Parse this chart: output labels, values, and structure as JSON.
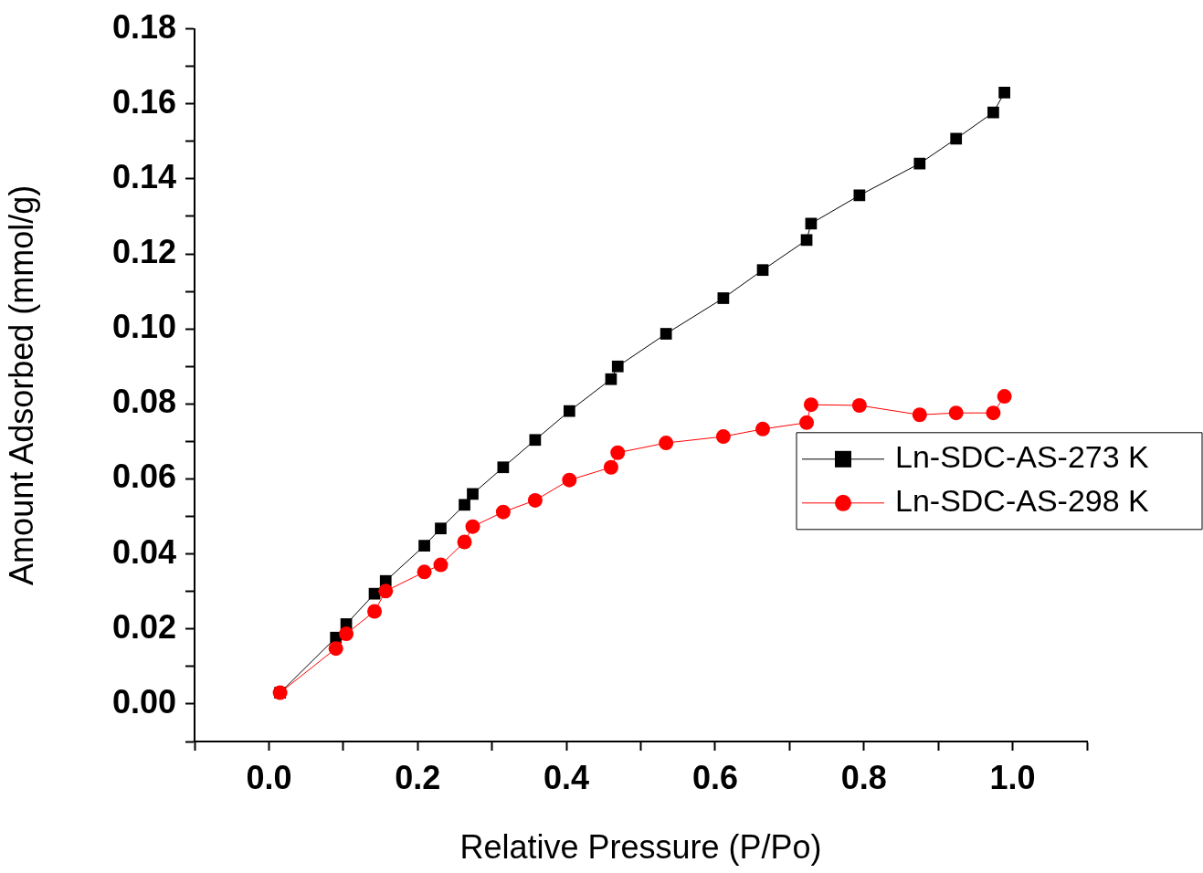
{
  "chart_data": {
    "type": "line",
    "xlabel": "Relative Pressure (P/Po)",
    "ylabel": "Amount Adsorbed (mmol/g)",
    "xlim": [
      -0.1,
      1.1
    ],
    "ylim": [
      -0.01,
      0.18
    ],
    "xticks": [
      {
        "value": -0.1,
        "label": null
      },
      {
        "value": 0,
        "label": "0.0"
      },
      {
        "value": 0.1,
        "label": null
      },
      0.2,
      {
        "value": 0.3,
        "label": null
      },
      0.4,
      {
        "value": 0.5,
        "label": null
      },
      0.6,
      {
        "value": 0.7,
        "label": null
      },
      0.8,
      {
        "value": 0.9,
        "label": null
      },
      {
        "value": 1,
        "label": "1.0"
      },
      {
        "value": 1.1,
        "label": null
      }
    ],
    "yticks": [
      {
        "value": -0.01,
        "label": null
      },
      {
        "value": 0,
        "label": "0.00"
      },
      {
        "value": 0.01,
        "label": null
      },
      {
        "value": 0.02,
        "label": "0.02"
      },
      {
        "value": 0.03,
        "label": null
      },
      {
        "value": 0.04,
        "label": "0.04"
      },
      {
        "value": 0.05,
        "label": null
      },
      {
        "value": 0.06,
        "label": "0.06"
      },
      {
        "value": 0.07,
        "label": null
      },
      {
        "value": 0.08,
        "label": "0.08"
      },
      {
        "value": 0.09,
        "label": null
      },
      {
        "value": 0.1,
        "label": "0.10"
      },
      {
        "value": 0.11,
        "label": null
      },
      {
        "value": 0.12,
        "label": "0.12"
      },
      {
        "value": 0.13,
        "label": null
      },
      {
        "value": 0.14,
        "label": "0.14"
      },
      {
        "value": 0.15,
        "label": null
      },
      {
        "value": 0.16,
        "label": "0.16"
      },
      {
        "value": 0.17,
        "label": null
      },
      {
        "value": 0.18,
        "label": "0.18"
      }
    ],
    "grid": false,
    "legend": "right",
    "line_style": "solid",
    "x": [
      0.015,
      0.09,
      0.104,
      0.142,
      0.157,
      0.209,
      0.231,
      0.263,
      0.274,
      0.315,
      0.358,
      0.404,
      0.46,
      0.469,
      0.534,
      0.611,
      0.664,
      0.723,
      0.729,
      0.794,
      0.875,
      0.924,
      0.974,
      0.989
    ],
    "series": [
      {
        "name": "Ln-SDC-AS-273 K",
        "color": "#000000",
        "marker": "square",
        "values": [
          0.003,
          0.0177,
          0.0213,
          0.0294,
          0.0328,
          0.0422,
          0.0468,
          0.0531,
          0.056,
          0.0631,
          0.0704,
          0.0781,
          0.0866,
          0.09,
          0.0987,
          0.1082,
          0.1157,
          0.1237,
          0.1281,
          0.1356,
          0.1441,
          0.1507,
          0.1577,
          0.163
        ]
      },
      {
        "name": "Ln-SDC-AS-298 K",
        "color": "#ff0000",
        "marker": "circle",
        "values": [
          0.003,
          0.0148,
          0.0187,
          0.0247,
          0.0301,
          0.0352,
          0.0371,
          0.0432,
          0.0473,
          0.0512,
          0.0543,
          0.0597,
          0.0631,
          0.067,
          0.0696,
          0.0713,
          0.0733,
          0.075,
          0.0798,
          0.0796,
          0.0771,
          0.0776,
          0.0776,
          0.082
        ]
      }
    ]
  }
}
